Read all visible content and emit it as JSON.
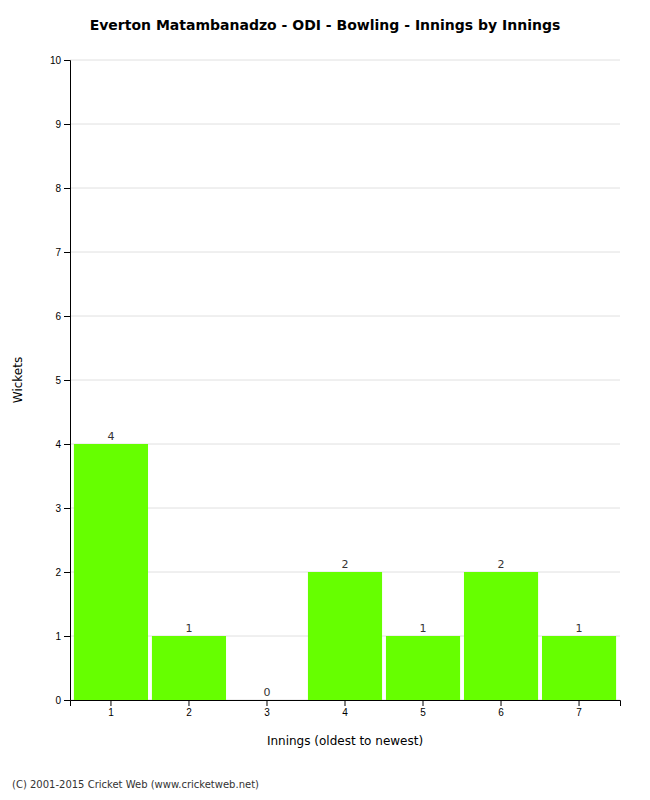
{
  "chart_data": {
    "type": "bar",
    "title": "Everton Matambanadzo - ODI - Bowling - Innings by Innings",
    "x_label": "Innings (oldest to newest)",
    "y_label": "Wickets",
    "categories": [
      "1",
      "2",
      "3",
      "4",
      "5",
      "6",
      "7"
    ],
    "values": [
      4,
      1,
      0,
      2,
      1,
      2,
      1
    ],
    "color": "#66ff00",
    "ylim": [
      0,
      10
    ],
    "yticks": [
      0,
      1,
      2,
      3,
      4,
      5,
      6,
      7,
      8,
      9,
      10
    ],
    "grid": true,
    "data_labels": true,
    "annotations": [
      "(C) 2001-2015 Cricket Web (www.cricketweb.net)"
    ]
  }
}
